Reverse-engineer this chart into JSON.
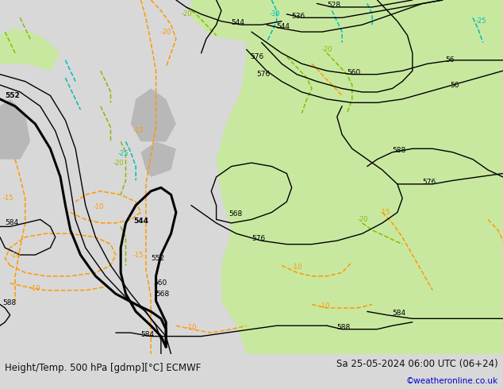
{
  "title_left": "Height/Temp. 500 hPa [gdmp][°C] ECMWF",
  "title_right": "Sa 25-05-2024 06:00 UTC (06+24)",
  "credit": "©weatheronline.co.uk",
  "fig_width": 6.34,
  "fig_height": 4.9,
  "dpi": 100,
  "bg_color": "#d8d8d8",
  "green_color": "#c8e8a0",
  "gray_color": "#c0c0c0",
  "black_contour_color": "#000000",
  "orange_contour_color": "#ff9900",
  "cyan_contour_color": "#00bbbb",
  "green_contour_color": "#88bb00",
  "footer_color": "#111111",
  "credit_color": "#0000cc",
  "title_fontsize": 8.5,
  "credit_fontsize": 7.5
}
